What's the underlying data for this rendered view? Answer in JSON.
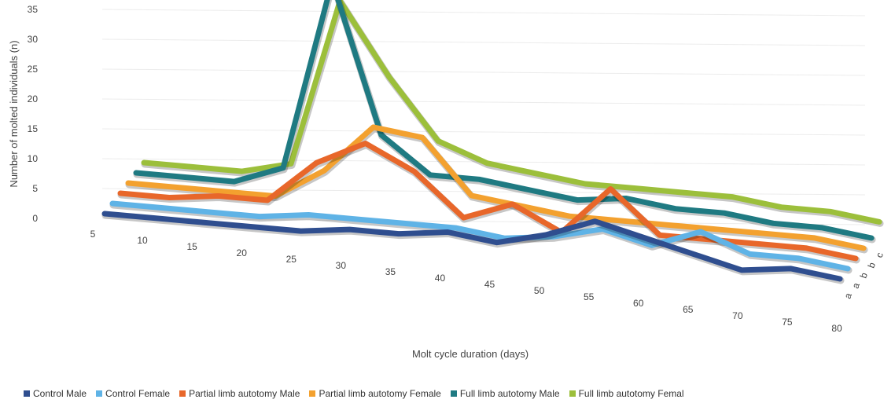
{
  "chart_data": {
    "type": "line",
    "title": "",
    "xlabel": "Molt cycle duration (days)",
    "ylabel": "Number of molted individuals (n)",
    "ylim": [
      0,
      35
    ],
    "yticks": [
      "0",
      "5",
      "10",
      "15",
      "20",
      "25",
      "30",
      "35"
    ],
    "categories": [
      "5",
      "10",
      "15",
      "20",
      "25",
      "30",
      "35",
      "40",
      "45",
      "50",
      "55",
      "60",
      "65",
      "70",
      "75",
      "80"
    ],
    "depth_labels": [
      "a",
      "a",
      "b",
      "b",
      "c",
      "c"
    ],
    "grid": true,
    "legend_position": "bottom",
    "series": [
      {
        "name": "Control Male",
        "color": "#2f4e8f",
        "values": [
          0,
          0,
          0,
          0,
          0,
          1,
          1,
          2,
          1,
          3,
          6,
          4,
          2,
          0,
          1,
          0
        ]
      },
      {
        "name": "Control Female",
        "color": "#5fb3e6",
        "values": [
          0,
          0,
          0,
          0,
          1,
          1,
          1,
          1,
          0,
          1,
          3,
          1,
          4,
          1,
          1,
          0
        ]
      },
      {
        "name": "Partial limb autotomy Male",
        "color": "#e8672a",
        "values": [
          0,
          0,
          1,
          1,
          8,
          12,
          8,
          1,
          4,
          0,
          8,
          1,
          1,
          1,
          1,
          0
        ]
      },
      {
        "name": "Partial limb autotomy Female",
        "color": "#f3a12f",
        "values": [
          0,
          0,
          0,
          0,
          5,
          13,
          12,
          3,
          2,
          1,
          1,
          1,
          1,
          1,
          1,
          0
        ]
      },
      {
        "name": "Full limb autotomy Male",
        "color": "#1f7a82",
        "values": [
          0,
          0,
          0,
          3,
          35,
          10,
          4,
          4,
          3,
          2,
          3,
          2,
          2,
          1,
          1,
          0
        ]
      },
      {
        "name": "Full limb autotomy Femal",
        "color": "#9cbf3b",
        "values": [
          0,
          0,
          0,
          2,
          30,
          18,
          8,
          5,
          4,
          3,
          3,
          3,
          3,
          2,
          2,
          1
        ]
      }
    ]
  }
}
